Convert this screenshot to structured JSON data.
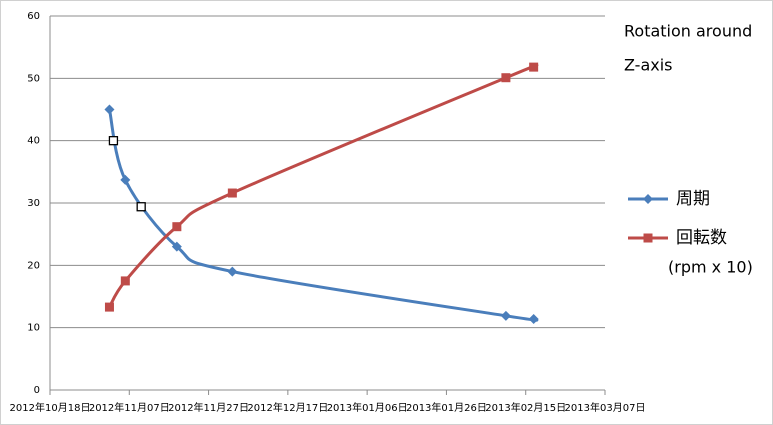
{
  "chart_data": {
    "type": "line",
    "x": [
      "2012-11-02",
      "2012-11-06",
      "2012-11-19",
      "2012-12-03",
      "2013-02-10",
      "2013-02-17"
    ],
    "series": [
      {
        "name": "周期",
        "color": "#4a7ebb",
        "marker": "diamond",
        "values": [
          45,
          33.7,
          23,
          19,
          11.9,
          11.4
        ]
      },
      {
        "name": "回転数",
        "color": "#be4b48",
        "marker": "square",
        "values": [
          13.3,
          17.5,
          26.2,
          31.6,
          50.1,
          51.8
        ]
      }
    ],
    "highlight_points": {
      "x": [
        "2012-11-03",
        "2012-11-10"
      ],
      "values": [
        40,
        29.4
      ]
    },
    "annotations": [
      "Rotation around",
      "Z-axis",
      "(rpm x 10)"
    ],
    "xlim": [
      "2012-10-18",
      "2013-03-07"
    ],
    "xticks": [
      {
        "value": "2012-10-18",
        "label": "2012年10月18日"
      },
      {
        "value": "2012-11-07",
        "label": "2012年11月07日"
      },
      {
        "value": "2012-11-27",
        "label": "2012年11月27日"
      },
      {
        "value": "2012-12-17",
        "label": "2012年12月17日"
      },
      {
        "value": "2013-01-06",
        "label": "2013年01月06日"
      },
      {
        "value": "2013-01-26",
        "label": "2013年01月26日"
      },
      {
        "value": "2013-02-15",
        "label": "2013年02月15日"
      },
      {
        "value": "2013-03-07",
        "label": "2013年03月07日"
      }
    ],
    "ylim": [
      0,
      60
    ],
    "yticks": [
      0,
      10,
      20,
      30,
      40,
      50,
      60
    ],
    "grid": true,
    "smooth": true,
    "legend": "right"
  }
}
